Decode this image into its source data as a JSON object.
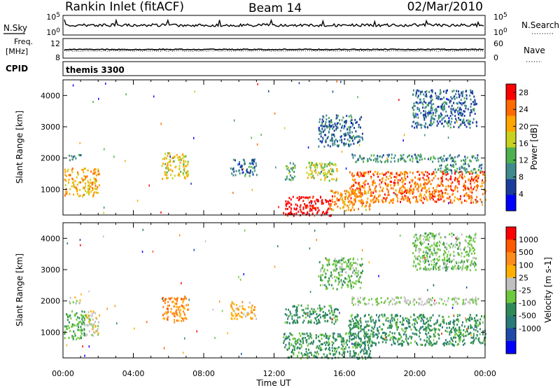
{
  "header": {
    "station": "Rankin Inlet (fitACF)",
    "beam": "Beam 14",
    "date": "02/Mar/2010"
  },
  "strip_panels": {
    "nsky": {
      "label": "N.Sky",
      "left_ticks": [
        "10^5",
        "10^0"
      ],
      "right_ticks": [
        "10^5",
        "10^0"
      ],
      "right_label": "N.Search"
    },
    "freq": {
      "label_top": "Freq.",
      "label_unit": "[MHz]",
      "left_ticks": [
        "12",
        "8"
      ],
      "right_ticks": [
        "60",
        "0"
      ],
      "right_label": "Nave"
    },
    "cpid": {
      "label": "CPID",
      "value": "themis 3300"
    }
  },
  "colors": {
    "power_scale": [
      "#0000ff",
      "#1a3c9c",
      "#3f8a8c",
      "#4fb04f",
      "#c8d21e",
      "#ffa500",
      "#ff6a00",
      "#ff0000"
    ],
    "velocity_scale": [
      "#ff0000",
      "#ff5a00",
      "#ff8c1a",
      "#ffb000",
      "#c0c0c0",
      "#6cc83c",
      "#2e8b57",
      "#2a7a7a",
      "#1f4aa8",
      "#0000ff"
    ]
  },
  "chart_data": [
    {
      "type": "heatmap",
      "title": "",
      "xlabel": "",
      "ylabel": "Slant Range [km]",
      "x_ticks": [
        "00:00",
        "04:00",
        "08:00",
        "12:00",
        "16:00",
        "20:00",
        "00:00"
      ],
      "y_ticks": [
        "1000",
        "2000",
        "3000",
        "4000"
      ],
      "ylim": [
        180,
        4500
      ],
      "colorbar": {
        "label": "Power [dB]",
        "ticks": [
          "4",
          "8",
          "12",
          "16",
          "20",
          "24",
          "28"
        ],
        "range": [
          0,
          30
        ]
      },
      "regions": [
        {
          "t": [
            0.05,
            2.05
          ],
          "r": [
            800,
            1700
          ],
          "level": 20
        },
        {
          "t": [
            0.3,
            1.0
          ],
          "r": [
            1950,
            2150
          ],
          "level": 8
        },
        {
          "t": [
            5.6,
            7.1
          ],
          "r": [
            1350,
            2200
          ],
          "level": 18
        },
        {
          "t": [
            9.5,
            11.0
          ],
          "r": [
            1450,
            2000
          ],
          "level": 8
        },
        {
          "t": [
            12.6,
            13.2
          ],
          "r": [
            1300,
            1900
          ],
          "level": 12
        },
        {
          "t": [
            13.8,
            15.6
          ],
          "r": [
            1300,
            1900
          ],
          "level": 16
        },
        {
          "t": [
            16.2,
            24.0
          ],
          "r": [
            600,
            1600
          ],
          "level": 24
        },
        {
          "t": [
            12.5,
            15.2
          ],
          "r": [
            180,
            800
          ],
          "level": 30
        },
        {
          "t": [
            15.2,
            17.5
          ],
          "r": [
            350,
            1000
          ],
          "level": 22
        },
        {
          "t": [
            16.4,
            23.6
          ],
          "r": [
            1900,
            2150
          ],
          "level": 10
        },
        {
          "t": [
            21.0,
            23.8
          ],
          "r": [
            1550,
            1850
          ],
          "level": 10
        },
        {
          "t": [
            14.5,
            17.0
          ],
          "r": [
            2400,
            3400
          ],
          "level": 8
        },
        {
          "t": [
            19.8,
            23.5
          ],
          "r": [
            3000,
            4200
          ],
          "level": 8
        }
      ]
    },
    {
      "type": "heatmap",
      "title": "",
      "xlabel": "Time UT",
      "ylabel": "Slant Range [km]",
      "x_ticks": [
        "00:00",
        "04:00",
        "08:00",
        "12:00",
        "16:00",
        "20:00",
        "00:00"
      ],
      "y_ticks": [
        "1000",
        "2000",
        "3000",
        "4000"
      ],
      "ylim": [
        180,
        4500
      ],
      "colorbar": {
        "label": "Velocity [m s-1]",
        "ticks": [
          "1000",
          "500",
          "100",
          "25",
          "-25",
          "-100",
          "-500",
          "-1000"
        ],
        "range": [
          -1000,
          1000
        ]
      },
      "regions": [
        {
          "t": [
            0.05,
            1.2
          ],
          "r": [
            800,
            1700
          ],
          "level": -200
        },
        {
          "t": [
            1.2,
            2.05
          ],
          "r": [
            900,
            1700
          ],
          "level": 100
        },
        {
          "t": [
            0.3,
            1.0
          ],
          "r": [
            1950,
            2150
          ],
          "level": 60
        },
        {
          "t": [
            5.6,
            7.1
          ],
          "r": [
            1350,
            2200
          ],
          "level": 500
        },
        {
          "t": [
            9.5,
            11.0
          ],
          "r": [
            1450,
            2000
          ],
          "level": 300
        },
        {
          "t": [
            12.6,
            15.6
          ],
          "r": [
            1300,
            1900
          ],
          "level": -300
        },
        {
          "t": [
            12.5,
            17.5
          ],
          "r": [
            180,
            1000
          ],
          "level": -300
        },
        {
          "t": [
            16.2,
            24.0
          ],
          "r": [
            600,
            1600
          ],
          "level": -300
        },
        {
          "t": [
            16.4,
            23.6
          ],
          "r": [
            1900,
            2150
          ],
          "level": 0
        },
        {
          "t": [
            14.5,
            17.0
          ],
          "r": [
            2400,
            3400
          ],
          "level": -100
        },
        {
          "t": [
            19.8,
            23.5
          ],
          "r": [
            3000,
            4200
          ],
          "level": -100
        }
      ]
    }
  ]
}
